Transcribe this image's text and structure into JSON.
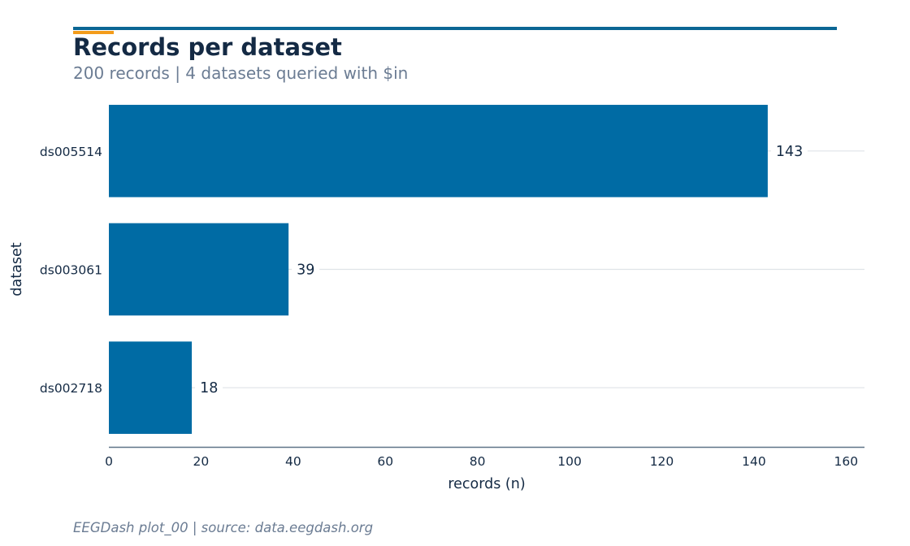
{
  "header": {
    "title": "Records per dataset",
    "subtitle": "200 records | 4 datasets queried with $in"
  },
  "footer": {
    "text": "EEGDash plot_00 | source: data.eegdash.org"
  },
  "colors": {
    "bar": "#006ba4",
    "accent": "#f39c1b",
    "rule": "#0b6694",
    "title": "#142a44",
    "muted": "#6b7c93",
    "grid": "#dfe3e8",
    "axis": "#5f7487"
  },
  "chart_data": {
    "type": "bar",
    "orientation": "horizontal",
    "categories": [
      "ds005514",
      "ds003061",
      "ds002718"
    ],
    "values": [
      143,
      39,
      18
    ],
    "data_labels": [
      "143",
      "39",
      "18"
    ],
    "xlabel": "records (n)",
    "ylabel": "dataset",
    "xlim": [
      0,
      164
    ],
    "xticks": [
      0,
      20,
      40,
      60,
      80,
      100,
      120,
      140,
      160
    ],
    "xtick_labels": [
      "0",
      "20",
      "40",
      "60",
      "80",
      "100",
      "120",
      "140",
      "160"
    ],
    "grid": "horizontal lines at categories"
  }
}
